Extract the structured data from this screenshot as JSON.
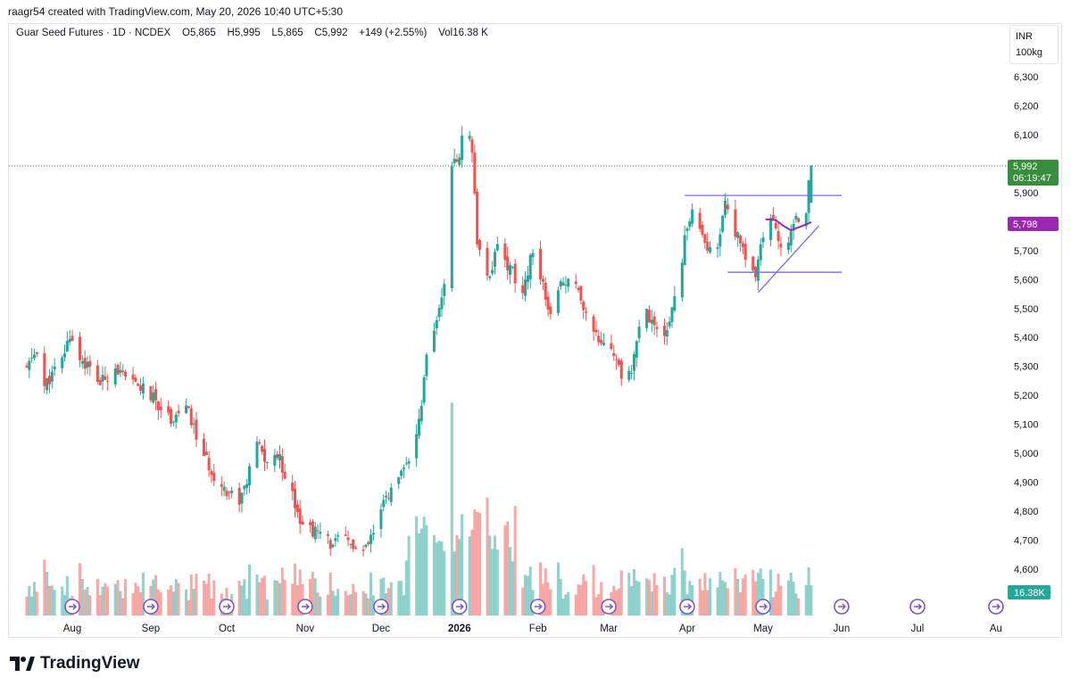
{
  "header": {
    "text": "raagr54 created with TradingView.com, May 20, 2026 10:40 UTC+5:30"
  },
  "legend": {
    "symbol": "Guar Seed Futures · 1D · NCDEX",
    "o_key": "O",
    "o": "5,865",
    "h_key": "H",
    "h": "5,995",
    "l_key": "L",
    "l": "5,865",
    "c_key": "C",
    "c": "5,992",
    "change": "+149 (+2.55%)",
    "vol_key": "Vol",
    "vol": "16.38 K"
  },
  "unit": {
    "currency": "INR",
    "unit": "100kg"
  },
  "price_label": {
    "value": "5,992",
    "countdown": "06:19:47",
    "color": "#388e3c"
  },
  "ma_label": {
    "value": "5,798",
    "color": "#9c27b0"
  },
  "volume_label": {
    "value": "16.38K",
    "color": "#26a69a"
  },
  "footer": {
    "brand": "TradingView"
  },
  "colors": {
    "up": "#26a69a",
    "down": "#ef5350",
    "line": "#7b68ee",
    "ma": "#9c27b0"
  },
  "chart_data": {
    "type": "candlestick",
    "title": "Guar Seed Futures · 1D · NCDEX",
    "y_ticks": [
      6300,
      6200,
      6100,
      6000,
      5900,
      5800,
      5700,
      5600,
      5500,
      5400,
      5300,
      5200,
      5100,
      5000,
      4900,
      4800,
      4700,
      4600
    ],
    "y_tick_labels": [
      "6,300",
      "6,200",
      "6,100",
      "6,000",
      "5,900",
      "5,800",
      "5,700",
      "5,600",
      "5,500",
      "5,400",
      "5,300",
      "5,200",
      "5,100",
      "5,000",
      "4,900",
      "4,800",
      "4,700",
      "4,600"
    ],
    "ylim": [
      4535,
      6335
    ],
    "x_labels": [
      {
        "label": "Aug",
        "date": "2025-08-01"
      },
      {
        "label": "Sep",
        "date": "2025-09-01"
      },
      {
        "label": "Oct",
        "date": "2025-10-01"
      },
      {
        "label": "Nov",
        "date": "2025-11-01"
      },
      {
        "label": "Dec",
        "date": "2025-12-01"
      },
      {
        "label": "2026",
        "date": "2026-01-01"
      },
      {
        "label": "Feb",
        "date": "2026-02-01"
      },
      {
        "label": "Mar",
        "date": "2026-03-01"
      },
      {
        "label": "Apr",
        "date": "2026-04-01"
      },
      {
        "label": "May",
        "date": "2026-05-01"
      },
      {
        "label": "Jun",
        "date": "2026-06-01"
      },
      {
        "label": "Jul",
        "date": "2026-07-01"
      },
      {
        "label": "Au",
        "date": "2026-08-01"
      }
    ],
    "price_path": [
      [
        "2025-07-14",
        5290
      ],
      [
        "2025-07-18",
        5360
      ],
      [
        "2025-07-21",
        5230
      ],
      [
        "2025-07-24",
        5270
      ],
      [
        "2025-07-28",
        5320
      ],
      [
        "2025-07-31",
        5410
      ],
      [
        "2025-08-04",
        5330
      ],
      [
        "2025-08-08",
        5290
      ],
      [
        "2025-08-12",
        5240
      ],
      [
        "2025-08-18",
        5300
      ],
      [
        "2025-08-22",
        5250
      ],
      [
        "2025-08-28",
        5230
      ],
      [
        "2025-09-03",
        5180
      ],
      [
        "2025-09-09",
        5120
      ],
      [
        "2025-09-15",
        5160
      ],
      [
        "2025-09-19",
        5060
      ],
      [
        "2025-09-24",
        4950
      ],
      [
        "2025-09-30",
        4880
      ],
      [
        "2025-10-06",
        4840
      ],
      [
        "2025-10-09",
        4900
      ],
      [
        "2025-10-13",
        5040
      ],
      [
        "2025-10-17",
        4960
      ],
      [
        "2025-10-21",
        5000
      ],
      [
        "2025-10-27",
        4860
      ],
      [
        "2025-10-31",
        4750
      ],
      [
        "2025-11-05",
        4730
      ],
      [
        "2025-11-11",
        4690
      ],
      [
        "2025-11-17",
        4700
      ],
      [
        "2025-11-24",
        4650
      ],
      [
        "2025-11-28",
        4720
      ],
      [
        "2025-12-03",
        4850
      ],
      [
        "2025-12-08",
        4900
      ],
      [
        "2025-12-12",
        4980
      ],
      [
        "2025-12-16",
        5110
      ],
      [
        "2025-12-19",
        5330
      ],
      [
        "2025-12-23",
        5440
      ],
      [
        "2025-12-26",
        5600
      ],
      [
        "2025-12-29",
        5990
      ],
      [
        "2026-01-01",
        6030
      ],
      [
        "2026-01-03",
        6190
      ],
      [
        "2026-01-06",
        6060
      ],
      [
        "2026-01-08",
        5730
      ],
      [
        "2026-01-12",
        5600
      ],
      [
        "2026-01-16",
        5700
      ],
      [
        "2026-01-21",
        5640
      ],
      [
        "2026-01-26",
        5560
      ],
      [
        "2026-01-30",
        5700
      ],
      [
        "2026-02-03",
        5580
      ],
      [
        "2026-02-06",
        5460
      ],
      [
        "2026-02-10",
        5590
      ],
      [
        "2026-02-16",
        5580
      ],
      [
        "2026-02-20",
        5480
      ],
      [
        "2026-02-26",
        5380
      ],
      [
        "2026-03-03",
        5350
      ],
      [
        "2026-03-06",
        5260
      ],
      [
        "2026-03-10",
        5300
      ],
      [
        "2026-03-14",
        5500
      ],
      [
        "2026-03-19",
        5450
      ],
      [
        "2026-03-24",
        5420
      ],
      [
        "2026-03-28",
        5560
      ],
      [
        "2026-04-01",
        5790
      ],
      [
        "2026-04-03",
        5840
      ],
      [
        "2026-04-08",
        5720
      ],
      [
        "2026-04-12",
        5670
      ],
      [
        "2026-04-16",
        5860
      ],
      [
        "2026-04-20",
        5760
      ],
      [
        "2026-04-24",
        5690
      ],
      [
        "2026-04-28",
        5590
      ],
      [
        "2026-05-01",
        5760
      ],
      [
        "2026-05-05",
        5800
      ],
      [
        "2026-05-09",
        5700
      ],
      [
        "2026-05-12",
        5770
      ],
      [
        "2026-05-15",
        5820
      ],
      [
        "2026-05-18",
        5850
      ],
      [
        "2026-05-20",
        5992
      ]
    ],
    "last": {
      "open": 5865,
      "high": 5995,
      "low": 5865,
      "close": 5992
    },
    "annotations": {
      "resistance": {
        "from": "2026-03-31",
        "to": "2026-06-01",
        "price": 5890
      },
      "support": {
        "from": "2026-04-17",
        "to": "2026-06-01",
        "price": 5625
      },
      "trendline": {
        "from": [
          "2026-04-29",
          5555
        ],
        "to": [
          "2026-05-23",
          5785
        ]
      },
      "ma_segment": [
        [
          "2026-05-02",
          5808
        ],
        [
          "2026-05-06",
          5805
        ],
        [
          "2026-05-09",
          5785
        ],
        [
          "2026-05-12",
          5770
        ],
        [
          "2026-05-15",
          5780
        ],
        [
          "2026-05-18",
          5790
        ],
        [
          "2026-05-20",
          5798
        ]
      ]
    },
    "last_price_line": 5992,
    "events_dates": [
      "2025-08-01",
      "2025-09-01",
      "2025-10-01",
      "2025-11-01",
      "2025-12-01",
      "2026-01-01",
      "2026-02-01",
      "2026-03-01",
      "2026-04-01",
      "2026-05-01",
      "2026-06-01",
      "2026-07-01",
      "2026-08-01"
    ]
  }
}
